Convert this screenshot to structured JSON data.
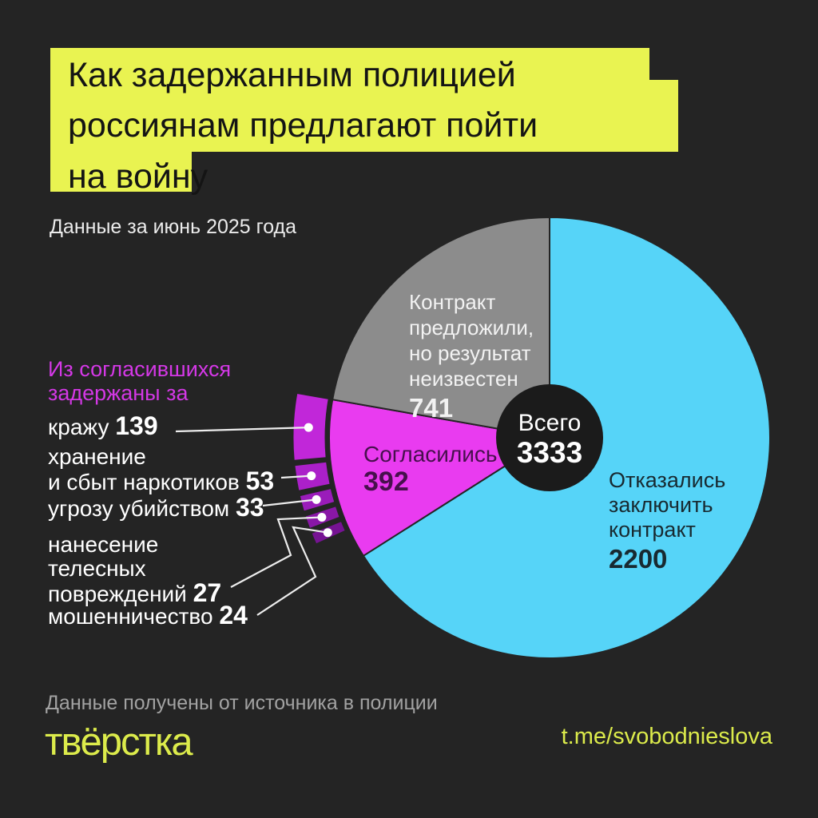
{
  "title": {
    "lines": [
      "Как задержанным полицией",
      "россиянам предлагают пойти",
      "на войну"
    ]
  },
  "subtitle": "Данные за июнь 2025 года",
  "colors": {
    "background": "#242424",
    "title_highlight": "#e9f351",
    "accent_yellow": "#dceb4b",
    "heading_magenta": "#d438e6",
    "leader_line": "#ededed",
    "donut_hole": "#1b1b1b"
  },
  "chart_data": {
    "type": "pie",
    "donut": true,
    "start_angle": "top",
    "direction": "clockwise",
    "title": "Как задержанным полицией россиянам предлагают пойти на войну",
    "period": "Данные за июнь 2025 года",
    "total_label": "Всего",
    "total": 3333,
    "slices": [
      {
        "name": "Отказались заключить контракт",
        "value": 2200,
        "color": "#56d4f8",
        "label_lines": [
          "Отказались",
          "заключить",
          "контракт"
        ]
      },
      {
        "name": "Согласились",
        "value": 392,
        "color": "#e93bf0",
        "label_lines": [
          "Согласились"
        ]
      },
      {
        "name": "Контракт предложили, но результат неизвестен",
        "value": 741,
        "color": "#8c8c8c",
        "label_lines": [
          "Контракт",
          "предложили,",
          "но результат",
          "неизвестен"
        ]
      }
    ],
    "breakdown_title_lines": [
      "Из согласившихся",
      "задержаны за"
    ],
    "breakdown": [
      {
        "name": "кражу",
        "value": 139,
        "color": "#c127d9",
        "lines": [
          "кражу"
        ]
      },
      {
        "name": "хранение и сбыт наркотиков",
        "value": 53,
        "color": "#ab20c9",
        "lines": [
          "хранение",
          "и сбыт наркотиков"
        ]
      },
      {
        "name": "угрозу убийством",
        "value": 33,
        "color": "#9a1cba",
        "lines": [
          "угрозу убийством"
        ]
      },
      {
        "name": "нанесение телесных повреждений",
        "value": 27,
        "color": "#8917a7",
        "lines": [
          "нанесение",
          "телесных",
          "повреждений"
        ]
      },
      {
        "name": "мошенничество",
        "value": 24,
        "color": "#761393",
        "lines": [
          "мошенничество"
        ]
      }
    ]
  },
  "footer": {
    "note": "Данные получены от источника в полиции",
    "logo": "твёрстка",
    "link": "t.me/svobodnieslova"
  }
}
